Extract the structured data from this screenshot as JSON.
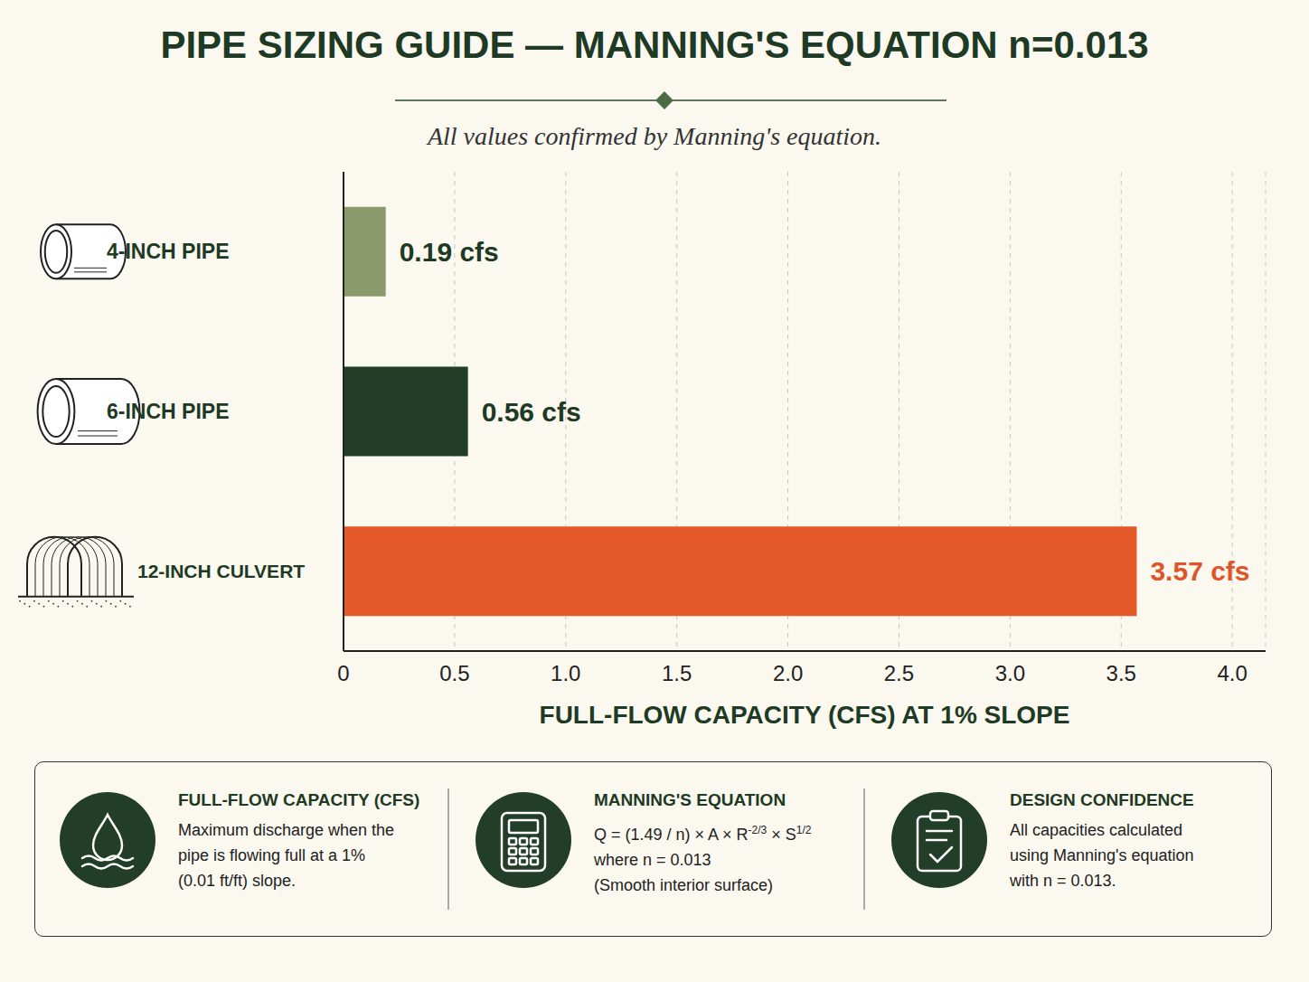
{
  "chart_data": {
    "type": "bar",
    "orientation": "horizontal",
    "title": "PIPE SIZING GUIDE — MANNING'S EQUATION n=0.013",
    "subtitle": "All values confirmed by Manning's equation.",
    "categories": [
      "4-INCH PIPE",
      "6-INCH PIPE",
      "12-INCH CULVERT"
    ],
    "values": [
      0.19,
      0.56,
      3.57
    ],
    "value_labels": [
      "0.19 cfs",
      "0.56 cfs",
      "3.57 cfs"
    ],
    "colors": [
      "#8a9a6c",
      "#223d28",
      "#e5582a"
    ],
    "xlabel": "FULL-FLOW CAPACITY (CFS) AT 1% SLOPE",
    "xlim": [
      0,
      4.15
    ],
    "xticks": [
      0,
      0.5,
      {
        "value": 1,
        "label": "1.0"
      },
      1.5,
      {
        "value": 2,
        "label": "2.0"
      },
      2.5,
      {
        "value": 3,
        "label": "3.0"
      },
      3.5,
      {
        "value": 4,
        "label": "4.0"
      }
    ],
    "grid": true,
    "data_labels": true
  },
  "info_panel": [
    {
      "title": "FULL-FLOW CAPACITY (CFS)",
      "lines": [
        "Maximum discharge when the",
        "pipe is flowing full at a 1%",
        "(0.01 ft/ft) slope."
      ]
    },
    {
      "title": "MANNING'S EQUATION",
      "formula": [
        {
          "text": "Q = (1.49 / n) × A × R"
        },
        {
          "sup": "-2/3"
        },
        {
          "text": " × S"
        },
        {
          "sup": "1/2"
        }
      ],
      "lines": [
        "where n = 0.013",
        "(Smooth interior surface)"
      ]
    },
    {
      "title": "DESIGN CONFIDENCE",
      "lines": [
        "All capacities calculated",
        "using Manning's equation",
        "with n = 0.013."
      ]
    }
  ]
}
